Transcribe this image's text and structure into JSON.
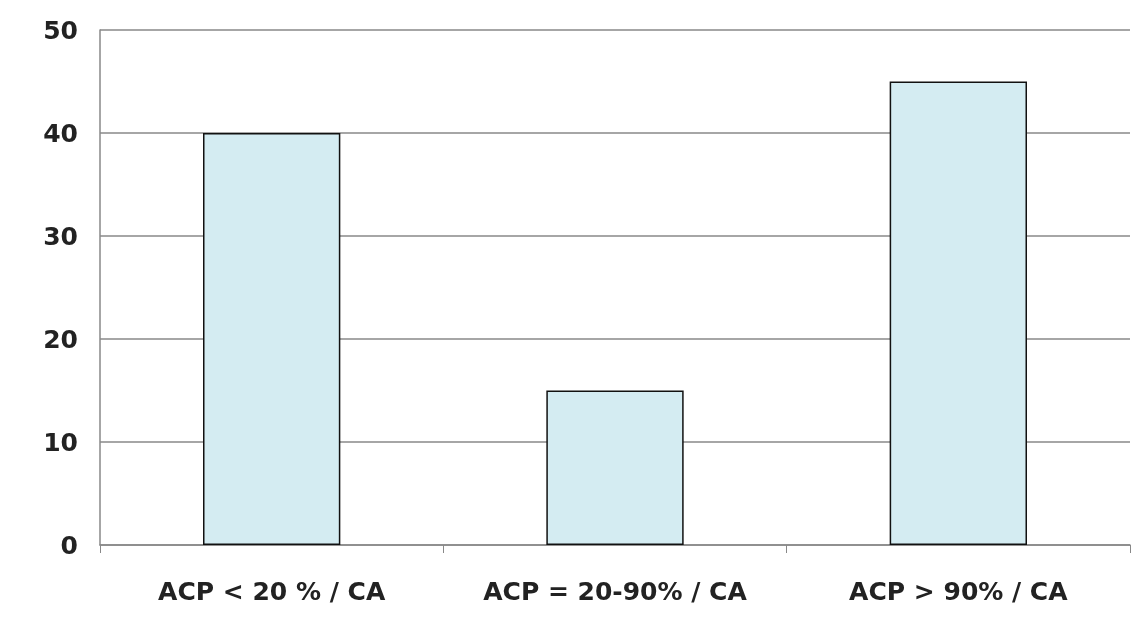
{
  "chart_data": {
    "type": "bar",
    "categories": [
      "ACP < 20 % / CA",
      "ACP = 20-90% / CA",
      "ACP > 90% / CA"
    ],
    "values": [
      40,
      15,
      45
    ],
    "color": "#d4ecf2",
    "ylim": [
      0,
      50
    ],
    "yticks": [
      0,
      10,
      20,
      30,
      40,
      50
    ],
    "grid": "y"
  }
}
